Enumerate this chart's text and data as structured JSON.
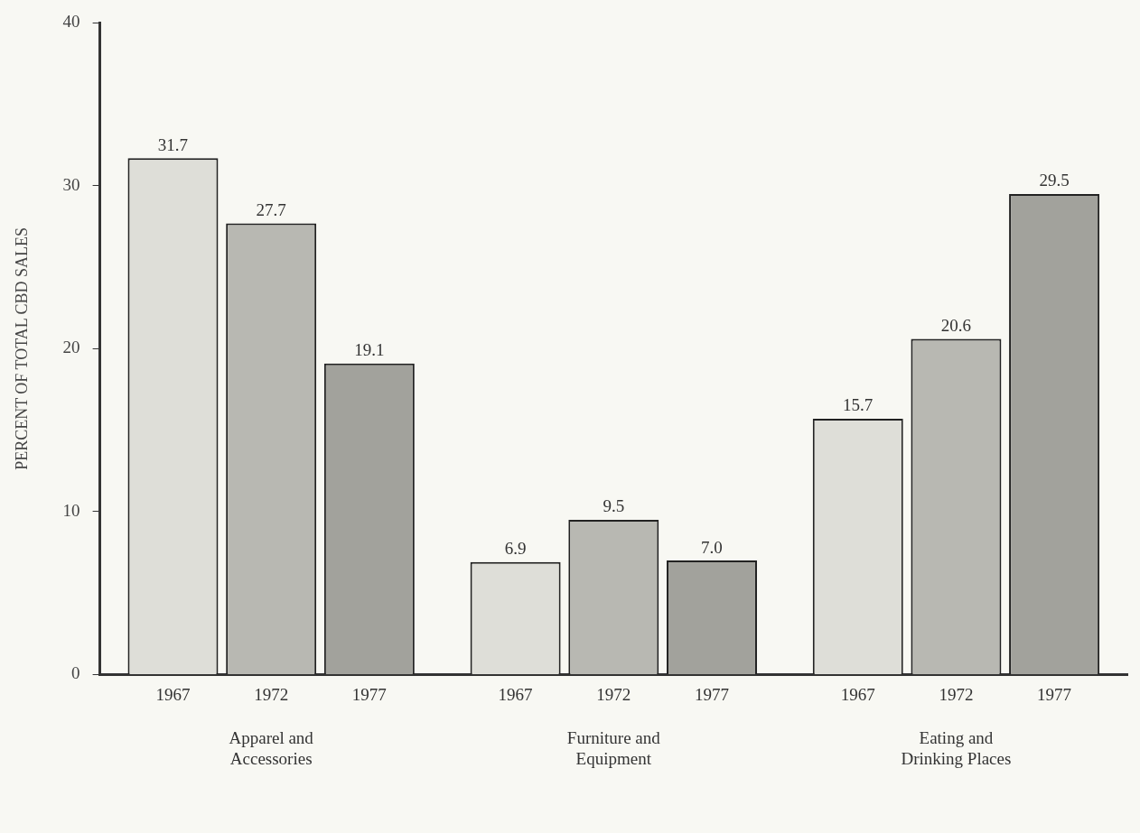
{
  "chart_data": {
    "type": "bar",
    "ylabel": "PERCENT OF TOTAL CBD SALES",
    "categories": [
      "Apparel and Accessories",
      "Furniture and Equipment",
      "Eating and Drinking Places"
    ],
    "series": [
      {
        "name": "1967",
        "color": "#deded8",
        "values": [
          31.7,
          6.9,
          15.7
        ],
        "value_labels": [
          "31.7",
          "6.9",
          "15.7"
        ]
      },
      {
        "name": "1972",
        "color": "#b8b8b2",
        "values": [
          27.7,
          9.5,
          20.6
        ],
        "value_labels": [
          "27.7",
          "9.5",
          "20.6"
        ]
      },
      {
        "name": "1977",
        "color": "#a2a29c",
        "values": [
          19.1,
          7.0,
          29.5
        ],
        "value_labels": [
          "19.1",
          "7.0",
          "29.5"
        ]
      }
    ],
    "ylim": [
      0,
      40
    ],
    "yticks": [
      0,
      10,
      20,
      30,
      40
    ],
    "grid": false,
    "legend": false
  }
}
